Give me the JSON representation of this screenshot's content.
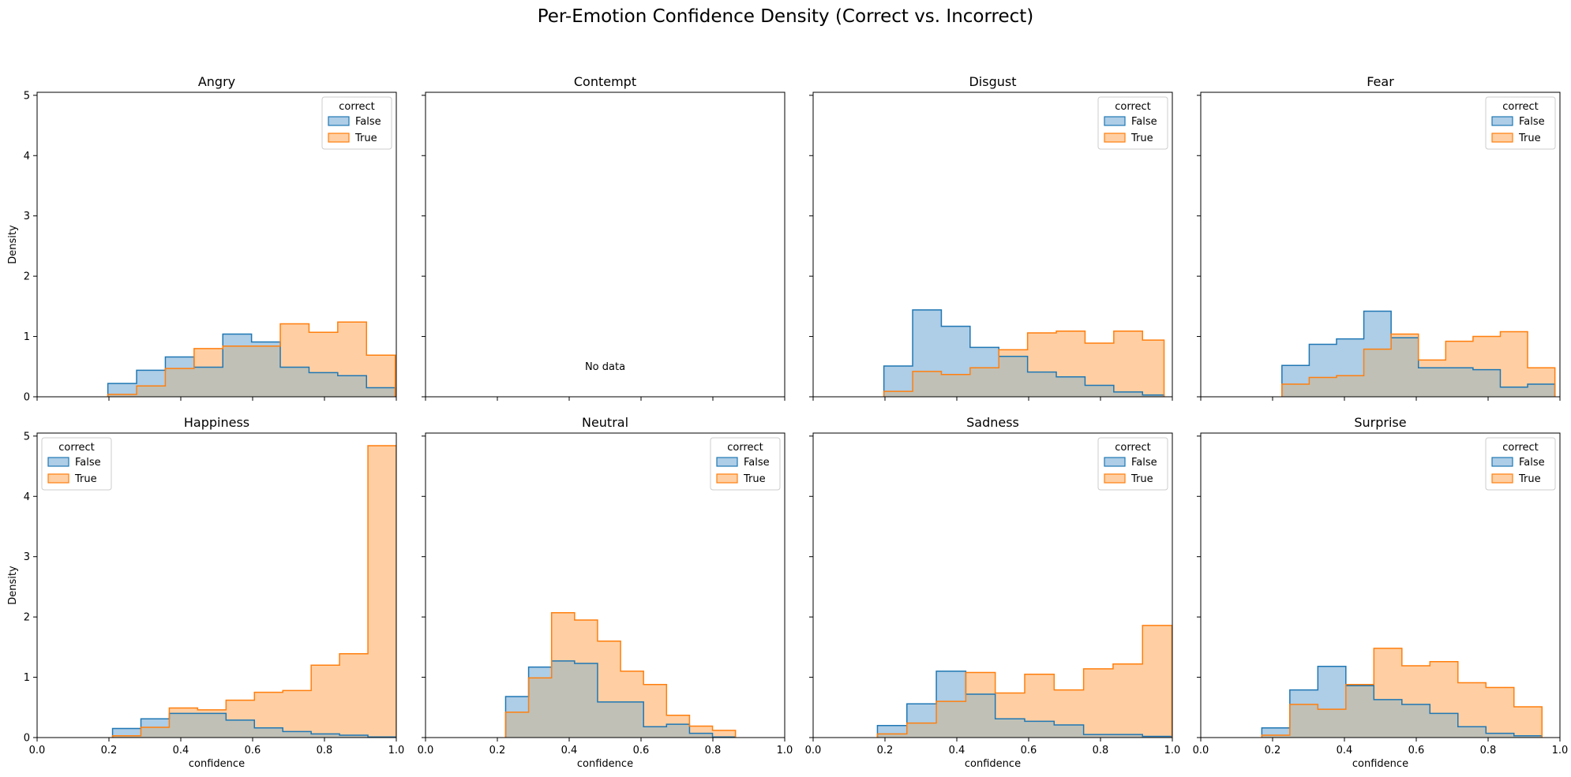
{
  "figure": {
    "title": "Per-Emotion Confidence Density (Correct vs. Incorrect)",
    "shared_xlabel": "confidence",
    "shared_ylabel": "Density",
    "legend_title": "correct",
    "series_names": [
      "False",
      "True"
    ],
    "colors": {
      "False": {
        "line": "#1f77b4",
        "fill": "#aecde6"
      },
      "True": {
        "line": "#ff7f0e",
        "fill": "#ffcfa3"
      },
      "overlap": "#c0c0b6"
    },
    "xticks": [
      "0.0",
      "0.2",
      "0.4",
      "0.6",
      "0.8",
      "1.0"
    ],
    "yticks": [
      "0",
      "1",
      "2",
      "3",
      "4",
      "5"
    ],
    "empty_text": "No data"
  },
  "chart_data": [
    {
      "type": "histogram-step",
      "title": "Angry",
      "xlim": [
        0,
        1
      ],
      "ylim": [
        0,
        5.05
      ],
      "legend": "top-right",
      "series": [
        {
          "name": "False",
          "x": [
            0.197,
            0.277,
            0.357,
            0.437,
            0.517,
            0.597,
            0.677,
            0.757,
            0.837,
            0.917,
            0.997
          ],
          "values": [
            0.22,
            0.44,
            0.66,
            0.49,
            1.04,
            0.91,
            0.49,
            0.4,
            0.35,
            0.15
          ]
        },
        {
          "name": "True",
          "x": [
            0.197,
            0.277,
            0.357,
            0.437,
            0.517,
            0.597,
            0.677,
            0.757,
            0.837,
            0.917,
            0.997
          ],
          "values": [
            0.04,
            0.18,
            0.47,
            0.8,
            0.84,
            0.84,
            1.21,
            1.07,
            1.24,
            0.69
          ]
        }
      ]
    },
    {
      "type": "histogram-step",
      "title": "Contempt",
      "xlim": [
        0,
        1
      ],
      "ylim": [
        0,
        5.05
      ],
      "empty": true,
      "series": []
    },
    {
      "type": "histogram-step",
      "title": "Disgust",
      "xlim": [
        0,
        1
      ],
      "ylim": [
        0,
        5.05
      ],
      "legend": "top-right",
      "series": [
        {
          "name": "False",
          "x": [
            0.197,
            0.277,
            0.357,
            0.437,
            0.517,
            0.597,
            0.677,
            0.757,
            0.837,
            0.917,
            0.977
          ],
          "values": [
            0.51,
            1.44,
            1.17,
            0.82,
            0.67,
            0.41,
            0.33,
            0.19,
            0.08,
            0.03
          ]
        },
        {
          "name": "True",
          "x": [
            0.197,
            0.277,
            0.357,
            0.437,
            0.517,
            0.597,
            0.677,
            0.757,
            0.837,
            0.917,
            0.977
          ],
          "values": [
            0.09,
            0.42,
            0.37,
            0.48,
            0.78,
            1.06,
            1.09,
            0.89,
            1.09,
            0.94
          ]
        }
      ]
    },
    {
      "type": "histogram-step",
      "title": "Fear",
      "xlim": [
        0,
        1
      ],
      "ylim": [
        0,
        5.05
      ],
      "legend": "top-right",
      "series": [
        {
          "name": "False",
          "x": [
            0.226,
            0.302,
            0.378,
            0.454,
            0.53,
            0.606,
            0.682,
            0.758,
            0.834,
            0.91,
            0.986
          ],
          "values": [
            0.52,
            0.87,
            0.96,
            1.42,
            0.98,
            0.48,
            0.48,
            0.45,
            0.16,
            0.21
          ]
        },
        {
          "name": "True",
          "x": [
            0.226,
            0.302,
            0.378,
            0.454,
            0.53,
            0.606,
            0.682,
            0.758,
            0.834,
            0.91,
            0.986
          ],
          "values": [
            0.21,
            0.32,
            0.35,
            0.79,
            1.04,
            0.61,
            0.92,
            1.0,
            1.08,
            0.48
          ]
        }
      ]
    },
    {
      "type": "histogram-step",
      "title": "Happiness",
      "xlim": [
        0,
        1
      ],
      "ylim": [
        0,
        5.05
      ],
      "legend": "top-left",
      "series": [
        {
          "name": "False",
          "x": [
            0.21,
            0.289,
            0.368,
            0.447,
            0.526,
            0.605,
            0.684,
            0.763,
            0.842,
            0.921,
            1.0
          ],
          "values": [
            0.15,
            0.31,
            0.4,
            0.4,
            0.29,
            0.16,
            0.1,
            0.06,
            0.04,
            0.01
          ]
        },
        {
          "name": "True",
          "x": [
            0.21,
            0.289,
            0.368,
            0.447,
            0.526,
            0.605,
            0.684,
            0.763,
            0.842,
            0.921,
            1.0
          ],
          "values": [
            0.03,
            0.17,
            0.49,
            0.46,
            0.62,
            0.75,
            0.78,
            1.2,
            1.39,
            4.84
          ]
        }
      ]
    },
    {
      "type": "histogram-step",
      "title": "Neutral",
      "xlim": [
        0,
        1
      ],
      "ylim": [
        0,
        5.05
      ],
      "legend": "top-right",
      "series": [
        {
          "name": "False",
          "x": [
            0.223,
            0.287,
            0.351,
            0.415,
            0.479,
            0.543,
            0.607,
            0.671,
            0.735,
            0.799,
            0.863
          ],
          "values": [
            0.68,
            1.17,
            1.27,
            1.23,
            0.59,
            0.59,
            0.18,
            0.22,
            0.07,
            0.01
          ]
        },
        {
          "name": "True",
          "x": [
            0.223,
            0.287,
            0.351,
            0.415,
            0.479,
            0.543,
            0.607,
            0.671,
            0.735,
            0.799,
            0.863
          ],
          "values": [
            0.42,
            0.99,
            2.07,
            1.95,
            1.6,
            1.1,
            0.88,
            0.37,
            0.19,
            0.12
          ]
        }
      ]
    },
    {
      "type": "histogram-step",
      "title": "Sadness",
      "xlim": [
        0,
        1
      ],
      "ylim": [
        0,
        5.05
      ],
      "legend": "top-right",
      "series": [
        {
          "name": "False",
          "x": [
            0.179,
            0.261,
            0.343,
            0.425,
            0.507,
            0.589,
            0.671,
            0.753,
            0.835,
            0.917,
            0.999
          ],
          "values": [
            0.2,
            0.56,
            1.1,
            0.72,
            0.31,
            0.27,
            0.21,
            0.05,
            0.05,
            0.02
          ]
        },
        {
          "name": "True",
          "x": [
            0.179,
            0.261,
            0.343,
            0.425,
            0.507,
            0.589,
            0.671,
            0.753,
            0.835,
            0.917,
            0.999
          ],
          "values": [
            0.06,
            0.24,
            0.6,
            1.08,
            0.74,
            1.05,
            0.79,
            1.14,
            1.22,
            1.86
          ]
        }
      ]
    },
    {
      "type": "histogram-step",
      "title": "Surprise",
      "xlim": [
        0,
        1
      ],
      "ylim": [
        0,
        5.05
      ],
      "legend": "top-right",
      "series": [
        {
          "name": "False",
          "x": [
            0.17,
            0.248,
            0.326,
            0.404,
            0.482,
            0.56,
            0.638,
            0.716,
            0.794,
            0.872,
            0.95
          ],
          "values": [
            0.16,
            0.79,
            1.18,
            0.86,
            0.63,
            0.55,
            0.4,
            0.18,
            0.07,
            0.03
          ]
        },
        {
          "name": "True",
          "x": [
            0.17,
            0.248,
            0.326,
            0.404,
            0.482,
            0.56,
            0.638,
            0.716,
            0.794,
            0.872,
            0.95
          ],
          "values": [
            0.04,
            0.55,
            0.47,
            0.88,
            1.48,
            1.19,
            1.26,
            0.91,
            0.83,
            0.51
          ]
        }
      ]
    }
  ]
}
